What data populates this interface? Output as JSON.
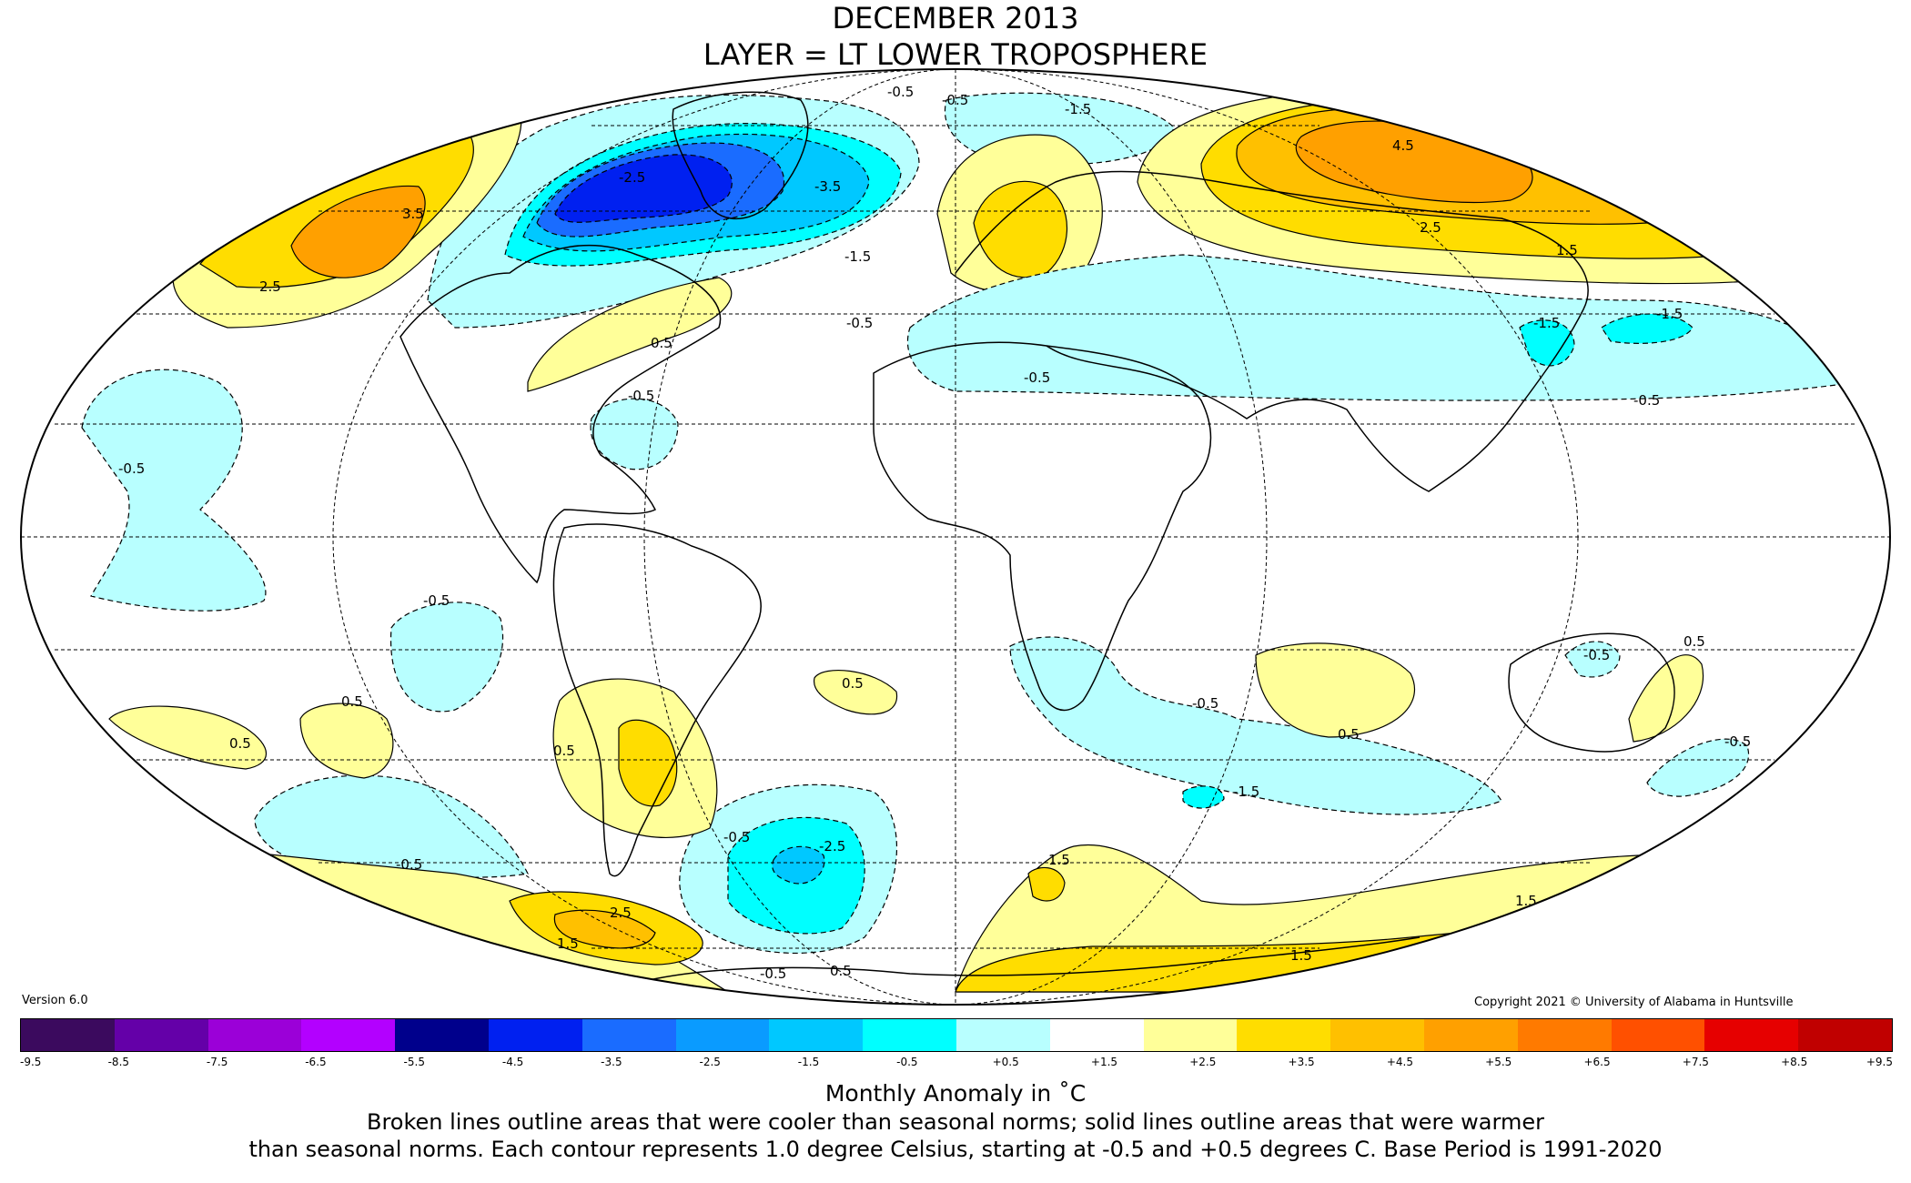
{
  "title": {
    "line1": "DECEMBER 2013",
    "line2": "LAYER = LT LOWER TROPOSPHERE"
  },
  "version": "Version 6.0",
  "copyright": "Copyright 2021 © University of Alabama in Huntsville",
  "colorbar": {
    "title": "Monthly Anomaly in ˚C",
    "ticks": [
      "-9.5",
      "-8.5",
      "-7.5",
      "-6.5",
      "-5.5",
      "-4.5",
      "-3.5",
      "-2.5",
      "-1.5",
      "-0.5",
      "+0.5",
      "+1.5",
      "+2.5",
      "+3.5",
      "+4.5",
      "+5.5",
      "+6.5",
      "+7.5",
      "+8.5",
      "+9.5"
    ],
    "colors": [
      "#3b0a5e",
      "#6400a8",
      "#9b00d8",
      "#b300ff",
      "#00008c",
      "#0020f0",
      "#1a6cff",
      "#0a9bff",
      "#00c8ff",
      "#00ffff",
      "#b8ffff",
      "#ffffff",
      "#ffff99",
      "#ffdd00",
      "#ffc000",
      "#ffa000",
      "#ff7a00",
      "#ff5000",
      "#e60000",
      "#c00000"
    ]
  },
  "notes": {
    "line1": "Broken lines outline areas that were cooler than seasonal norms; solid lines outline areas that were warmer",
    "line2": "than seasonal norms. Each contour represents 1.0 degree Celsius, starting at -0.5 and +0.5 degrees C. Base Period is 1991-2020"
  },
  "contour_labels": [
    "-0.5",
    "-0.5",
    "-1.5",
    "-2.5",
    "-3.5",
    "-1.5",
    "-0.5",
    "0.5",
    "-0.5",
    "-0.5",
    "-0.5",
    "2.5",
    "3.5",
    "4.5",
    "2.5",
    "1.5",
    "-1.5",
    "-1.5",
    "-0.5",
    "0.5",
    "0.5",
    "0.5",
    "-0.5",
    "0.5",
    "-0.5",
    "-2.5",
    "-0.5",
    "-1.5",
    "0.5",
    "-0.5",
    "1.5",
    "1.5",
    "2.5",
    "1.5",
    "-0.5",
    "0.5",
    "-0.5",
    "-0.5",
    "1.5",
    "0.5"
  ]
}
